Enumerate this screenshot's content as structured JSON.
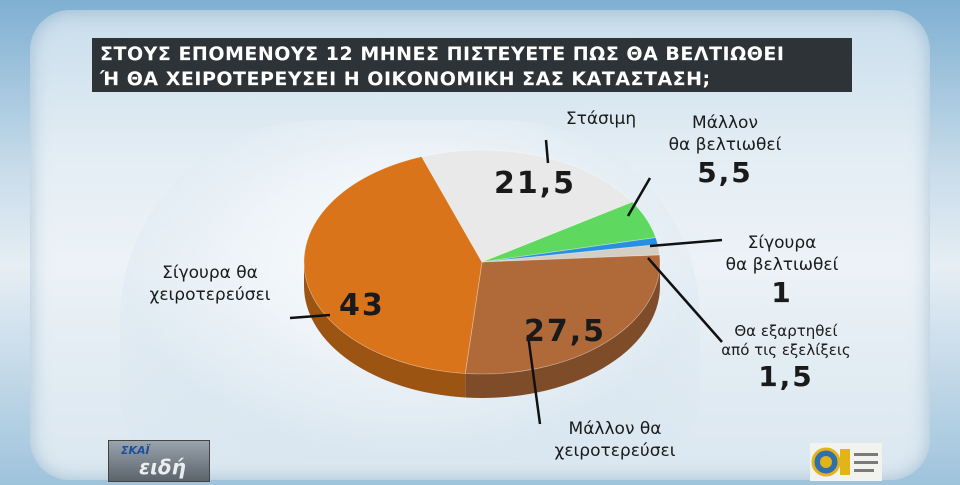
{
  "title_line1": "ΣΤΟΥΣ ΕΠΟΜΕΝΟΥΣ 12 ΜΗΝΕΣ ΠΙΣΤΕΥΕΤΕ ΠΩΣ ΘΑ ΒΕΛΤΙΩΘΕΙ",
  "title_line2": "Ή ΘΑ ΧΕΙΡΟΤΕΡΕΥΣΕΙ Η ΟΙΚΟΝΟΜΙΚΗ ΣΑΣ ΚΑΤΑΣΤΑΣΗ;",
  "logos": {
    "left_line1": "ΣΚΑΪ",
    "left_line2": "ειδή"
  },
  "colors": {
    "orange": "#d9741a",
    "brown": "#b06a3a",
    "white": "#e9e9e9",
    "green": "#5fd85f",
    "blue": "#2a8fe0"
  },
  "chart_data": {
    "type": "pie",
    "title": "ΣΤΟΥΣ ΕΠΟΜΕΝΟΥΣ 12 ΜΗΝΕΣ ΠΙΣΤΕΥΕΤΕ ΠΩΣ ΘΑ ΒΕΛΤΙΩΘΕΙ Ή ΘΑ ΧΕΙΡΟΤΕΡΕΥΣΕΙ Η ΟΙΚΟΝΟΜΙΚΗ ΣΑΣ ΚΑΤΑΣΤΑΣΗ;",
    "slices": [
      {
        "label": "Στάσιμη",
        "value": 21.5,
        "display": "21,5",
        "color": "#e9e9e9"
      },
      {
        "label": "Μάλλον θα βελτιωθεί",
        "value": 5.5,
        "display": "5,5",
        "color": "#5fd85f"
      },
      {
        "label": "Σίγουρα θα βελτιωθεί",
        "value": 1,
        "display": "1",
        "color": "#2a8fe0"
      },
      {
        "label": "Θα εξαρτηθεί από τις εξελίξεις",
        "value": 1.5,
        "display": "1,5",
        "color": "#d4cfc4"
      },
      {
        "label": "Μάλλον θα χειροτερεύσει",
        "value": 27.5,
        "display": "27,5",
        "color": "#b06a3a"
      },
      {
        "label": "Σίγουρα θα χειροτερεύσει",
        "value": 43,
        "display": "43",
        "color": "#d9741a"
      }
    ],
    "labels": {
      "stasimi": "Στάσιμη",
      "mallon_belt_1": "Μάλλον",
      "mallon_belt_2": "θα βελτιωθεί",
      "sigoura_belt_1": "Σίγουρα",
      "sigoura_belt_2": "θα βελτιωθεί",
      "exartithei_1": "Θα εξαρτηθεί",
      "exartithei_2": "από τις εξελίξεις",
      "mallon_xeir_1": "Μάλλον θα",
      "mallon_xeir_2": "χειροτερεύσει",
      "sigoura_xeir_1": "Σίγουρα θα",
      "sigoura_xeir_2": "χειροτερεύσει"
    }
  }
}
